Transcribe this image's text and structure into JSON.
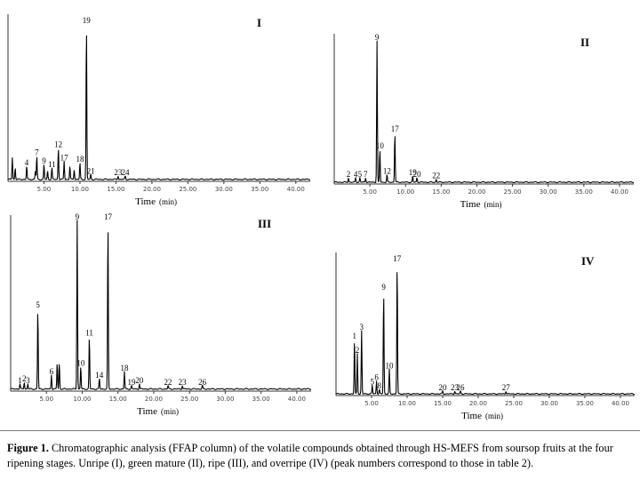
{
  "axis_label": "Time",
  "axis_unit": "(min)",
  "caption": {
    "label": "Figure 1.",
    "text": " Chromatographic analysis (FFAP column) of the volatile compounds obtained through HS-MEFS from soursop fruits at the four ripening stages. Unripe (I), green mature (II), ripe (III), and overripe (IV) (peak numbers correspond to those in table 2)."
  },
  "chart_data": [
    {
      "type": "line",
      "panel": "I",
      "xlim": [
        0,
        42
      ],
      "xticks": [
        5,
        10,
        15,
        20,
        25,
        30,
        35,
        40
      ],
      "xtick_labels": [
        "5.00",
        "10.00",
        "15.00",
        "20.00",
        "25.00",
        "30.00",
        "35.00",
        "40.00"
      ],
      "ylim": [
        0,
        100
      ],
      "xlabel": "Time (min)",
      "peaks": [
        {
          "label": "",
          "x": 0.6,
          "y": 13
        },
        {
          "label": "",
          "x": 1.0,
          "y": 7
        },
        {
          "label": "4",
          "x": 2.6,
          "y": 8
        },
        {
          "label": "",
          "x": 3.8,
          "y": 5
        },
        {
          "label": "7",
          "x": 4.0,
          "y": 14
        },
        {
          "label": "9",
          "x": 5.0,
          "y": 9
        },
        {
          "label": "",
          "x": 5.5,
          "y": 5
        },
        {
          "label": "11",
          "x": 6.1,
          "y": 7
        },
        {
          "label": "12",
          "x": 7.0,
          "y": 19
        },
        {
          "label": "17",
          "x": 7.8,
          "y": 11
        },
        {
          "label": "",
          "x": 8.6,
          "y": 8
        },
        {
          "label": "",
          "x": 9.2,
          "y": 6
        },
        {
          "label": "18",
          "x": 10.0,
          "y": 10
        },
        {
          "label": "19",
          "x": 10.9,
          "y": 93
        },
        {
          "label": "21",
          "x": 11.5,
          "y": 3
        },
        {
          "label": "23",
          "x": 15.3,
          "y": 2
        },
        {
          "label": "24",
          "x": 16.3,
          "y": 2
        }
      ]
    },
    {
      "type": "line",
      "panel": "II",
      "xlim": [
        0,
        42
      ],
      "xticks": [
        5,
        10,
        15,
        20,
        25,
        30,
        35,
        40
      ],
      "xtick_labels": [
        "5.00",
        "10.00",
        "15.00",
        "20.00",
        "25.00",
        "30.00",
        "35.00",
        "40.00"
      ],
      "ylim": [
        0,
        100
      ],
      "xlabel": "Time (min)",
      "peaks": [
        {
          "label": "2",
          "x": 2.0,
          "y": 3
        },
        {
          "label": "4",
          "x": 3.0,
          "y": 3
        },
        {
          "label": "5",
          "x": 3.6,
          "y": 3
        },
        {
          "label": "7",
          "x": 4.4,
          "y": 3
        },
        {
          "label": "9",
          "x": 6.0,
          "y": 94
        },
        {
          "label": "10",
          "x": 6.4,
          "y": 22
        },
        {
          "label": "12",
          "x": 7.4,
          "y": 5
        },
        {
          "label": "17",
          "x": 8.5,
          "y": 33
        },
        {
          "label": "19",
          "x": 11.0,
          "y": 4
        },
        {
          "label": "20",
          "x": 11.6,
          "y": 3
        },
        {
          "label": "22",
          "x": 14.3,
          "y": 2
        }
      ]
    },
    {
      "type": "line",
      "panel": "III",
      "xlim": [
        0,
        42
      ],
      "xticks": [
        5,
        10,
        15,
        20,
        25,
        30,
        35,
        40
      ],
      "xtick_labels": [
        "5.00",
        "10.00",
        "15.00",
        "20.00",
        "25.00",
        "30.00",
        "35.00",
        "40.00"
      ],
      "ylim": [
        0,
        100
      ],
      "xlabel": "Time (min)",
      "peaks": [
        {
          "label": "1",
          "x": 1.3,
          "y": 3
        },
        {
          "label": "2",
          "x": 1.9,
          "y": 4
        },
        {
          "label": "3",
          "x": 2.4,
          "y": 3
        },
        {
          "label": "5",
          "x": 3.8,
          "y": 46
        },
        {
          "label": "6",
          "x": 5.7,
          "y": 8
        },
        {
          "label": "",
          "x": 6.5,
          "y": 15
        },
        {
          "label": "",
          "x": 6.8,
          "y": 15
        },
        {
          "label": "9",
          "x": 9.3,
          "y": 96
        },
        {
          "label": "10",
          "x": 9.8,
          "y": 13
        },
        {
          "label": "11",
          "x": 11.0,
          "y": 30
        },
        {
          "label": "14",
          "x": 12.4,
          "y": 6
        },
        {
          "label": "17",
          "x": 13.6,
          "y": 96
        },
        {
          "label": "18",
          "x": 15.9,
          "y": 10
        },
        {
          "label": "19",
          "x": 16.9,
          "y": 2
        },
        {
          "label": "20",
          "x": 18.0,
          "y": 3
        },
        {
          "label": "22",
          "x": 22.0,
          "y": 2
        },
        {
          "label": "23",
          "x": 24.0,
          "y": 2
        },
        {
          "label": "26",
          "x": 26.8,
          "y": 2
        }
      ]
    },
    {
      "type": "line",
      "panel": "IV",
      "xlim": [
        0,
        42
      ],
      "xticks": [
        5,
        10,
        15,
        20,
        25,
        30,
        35,
        40
      ],
      "xtick_labels": [
        "5.00",
        "10.00",
        "15.00",
        "20.00",
        "25.00",
        "30.00",
        "35.00",
        "40.00"
      ],
      "ylim": [
        0,
        100
      ],
      "xlabel": "Time (min)",
      "peaks": [
        {
          "label": "1",
          "x": 2.6,
          "y": 38
        },
        {
          "label": "2",
          "x": 3.0,
          "y": 28
        },
        {
          "label": "3",
          "x": 3.6,
          "y": 44
        },
        {
          "label": "5",
          "x": 5.1,
          "y": 6
        },
        {
          "label": "6",
          "x": 5.7,
          "y": 9
        },
        {
          "label": "8",
          "x": 6.1,
          "y": 3
        },
        {
          "label": "9",
          "x": 6.7,
          "y": 72
        },
        {
          "label": "10",
          "x": 7.5,
          "y": 17
        },
        {
          "label": "17",
          "x": 8.6,
          "y": 92
        },
        {
          "label": "20",
          "x": 15.0,
          "y": 2
        },
        {
          "label": "23",
          "x": 16.7,
          "y": 2
        },
        {
          "label": "26",
          "x": 17.5,
          "y": 2
        },
        {
          "label": "27",
          "x": 23.9,
          "y": 2
        }
      ]
    }
  ]
}
